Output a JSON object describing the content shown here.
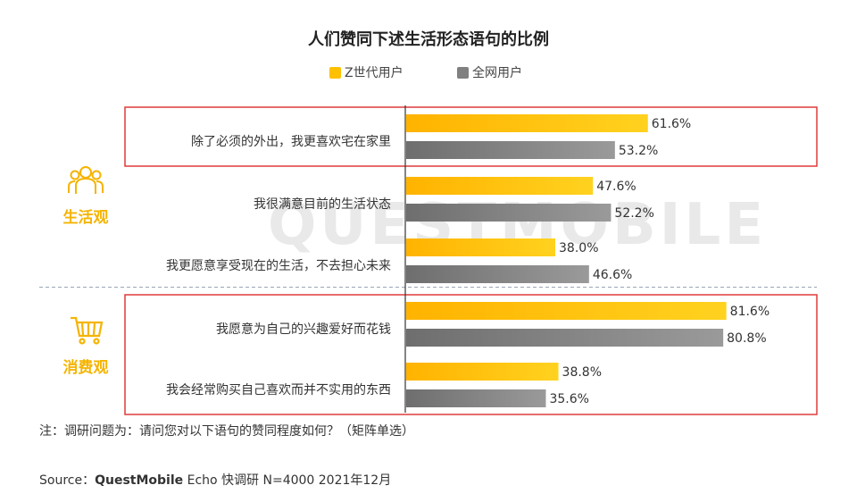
{
  "title": "人们赞同下述生活形态语句的比例",
  "legend": [
    {
      "name": "Z世代用户",
      "color": "#FFC000"
    },
    {
      "name": "全网用户",
      "color": "#808080"
    }
  ],
  "categories": [
    {
      "label": "生活观",
      "icon": "people-icon"
    },
    {
      "label": "消费观",
      "icon": "shopping-cart-icon"
    }
  ],
  "watermark": "QUESTMOBILE",
  "note": "注：调研问题为：请问您对以下语句的赞同程度如何？（矩阵单选）",
  "source": {
    "prefix": "Source：",
    "brand": "QuestMobile",
    "rest": " Echo 快调研 N=4000 2021年12月"
  },
  "chart_data": {
    "type": "bar",
    "orientation": "horizontal",
    "title": "人们赞同下述生活形态语句的比例",
    "unit": "%",
    "categories": [
      "除了必须的外出，我更喜欢宅在家里",
      "我很满意目前的生活状态",
      "我更愿意享受现在的生活，不去担心未来",
      "我愿意为自己的兴趣爱好而花钱",
      "我会经常购买自己喜欢而并不实用的东西"
    ],
    "groups": [
      "生活观",
      "生活观",
      "生活观",
      "消费观",
      "消费观"
    ],
    "highlighted": [
      true,
      false,
      false,
      true,
      true
    ],
    "series": [
      {
        "name": "Z世代用户",
        "color": "#FFC000",
        "values": [
          61.6,
          47.6,
          38.0,
          81.6,
          38.8
        ],
        "labels": [
          "61.6%",
          "47.6%",
          "38.0%",
          "81.6%",
          "38.8%"
        ]
      },
      {
        "name": "全网用户",
        "color": "#808080",
        "values": [
          53.2,
          52.2,
          46.6,
          80.8,
          35.6
        ],
        "labels": [
          "53.2%",
          "52.2%",
          "46.6%",
          "80.8%",
          "35.6%"
        ]
      }
    ],
    "xlim": [
      0,
      86
    ],
    "legend_position": "top-center",
    "grid": false
  }
}
